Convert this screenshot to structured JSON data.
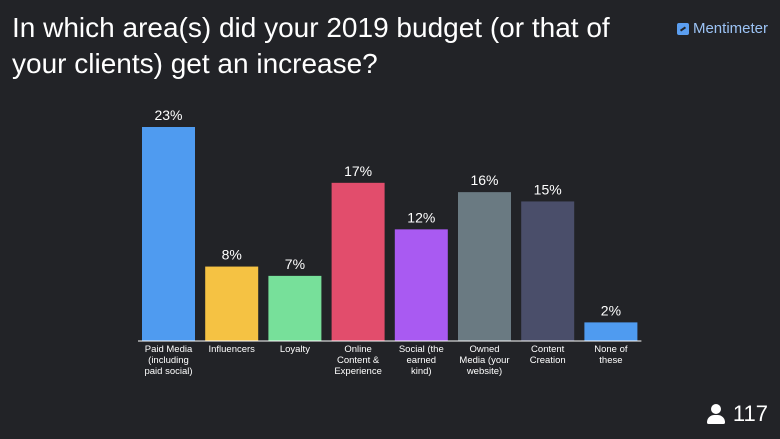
{
  "question": "In which area(s) did your 2019 budget (or that of your clients) get an increase?",
  "brand": {
    "name": "Mentimeter",
    "icon": "mentimeter-logo-icon"
  },
  "participants": {
    "count": "117",
    "icon": "user-icon"
  },
  "chart_data": {
    "type": "bar",
    "title": "",
    "xlabel": "",
    "ylabel": "",
    "ylim": [
      0,
      23
    ],
    "grid": false,
    "categories": [
      [
        "Paid Media",
        "(including",
        "paid social)"
      ],
      [
        "Influencers"
      ],
      [
        "Loyalty"
      ],
      [
        "Online",
        "Content &",
        "Experience"
      ],
      [
        "Social (the",
        "earned",
        "kind)"
      ],
      [
        "Owned",
        "Media (your",
        "website)"
      ],
      [
        "Content",
        "Creation"
      ],
      [
        "None of",
        "these"
      ]
    ],
    "values": [
      23,
      8,
      7,
      17,
      12,
      16,
      15,
      2
    ],
    "labels": [
      "23%",
      "8%",
      "7%",
      "17%",
      "12%",
      "16%",
      "15%",
      "2%"
    ],
    "colors": [
      "#4f9bf0",
      "#f5c243",
      "#77e09a",
      "#e24d6c",
      "#a95af2",
      "#6a7a82",
      "#4a4e6a",
      "#4f9bf0"
    ]
  }
}
